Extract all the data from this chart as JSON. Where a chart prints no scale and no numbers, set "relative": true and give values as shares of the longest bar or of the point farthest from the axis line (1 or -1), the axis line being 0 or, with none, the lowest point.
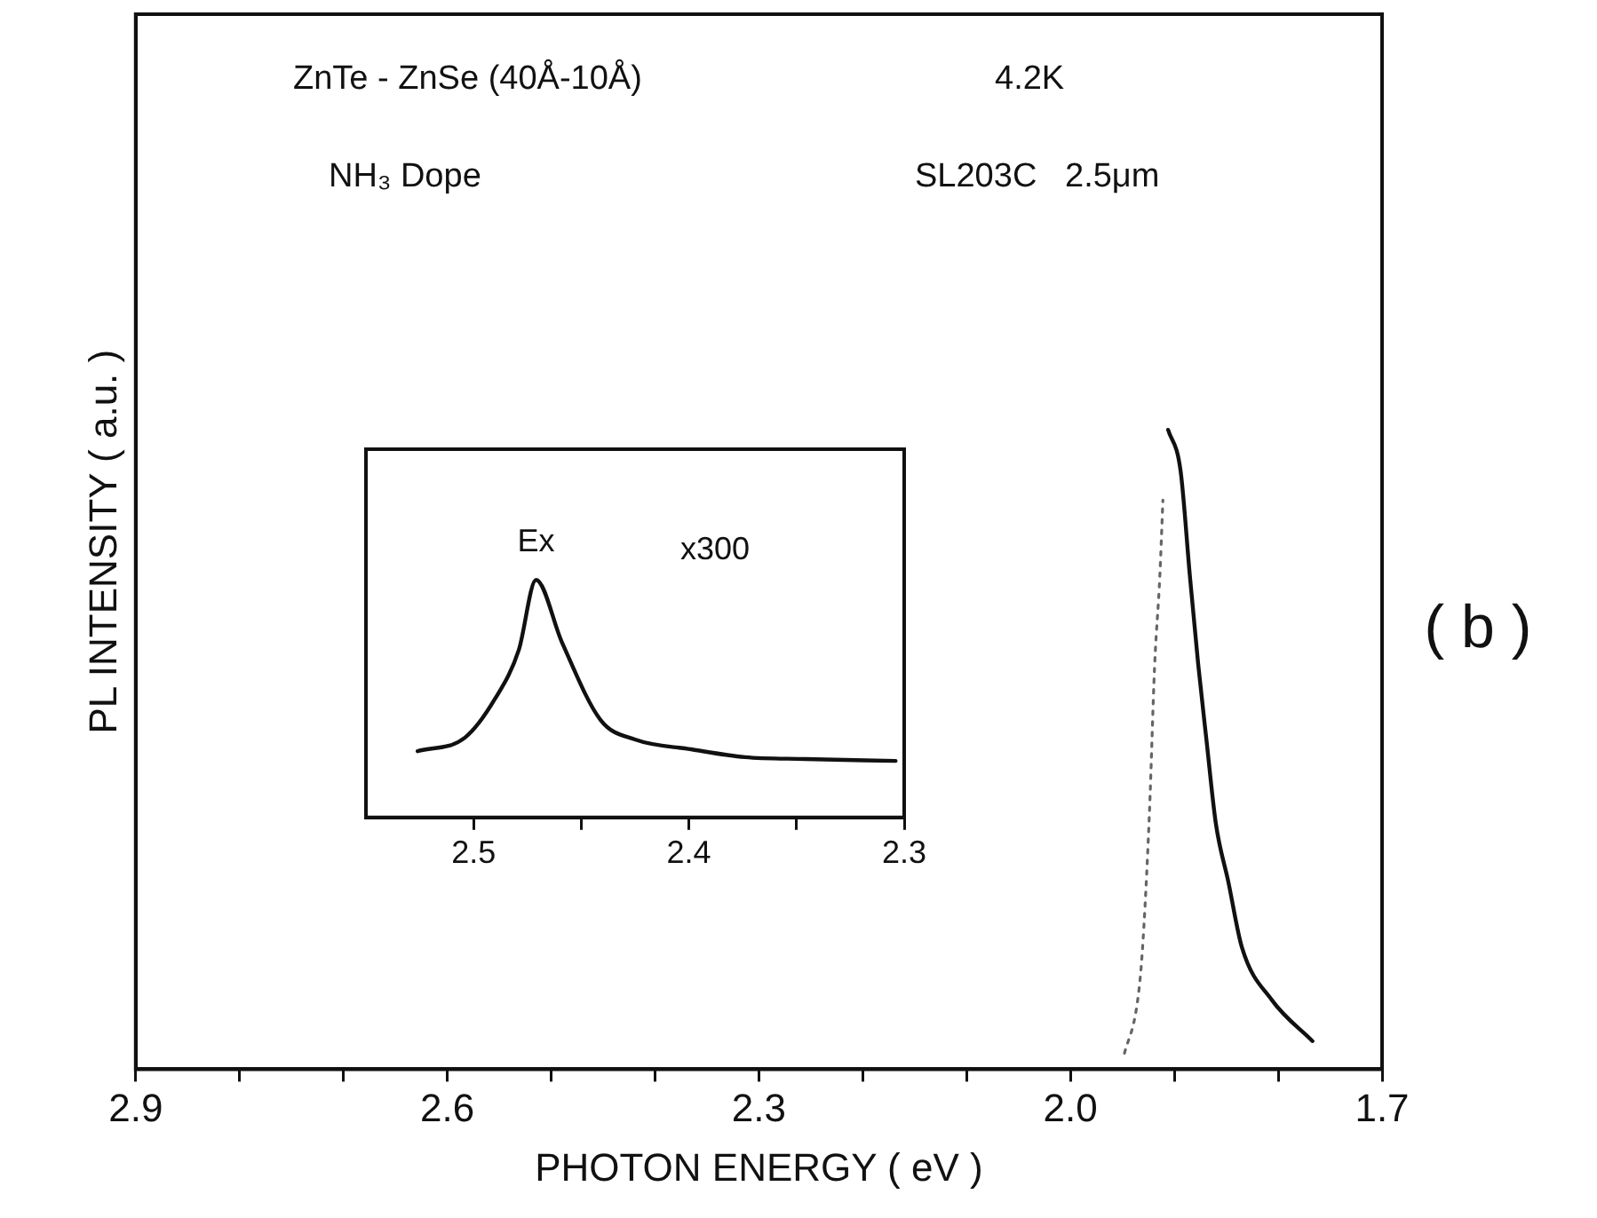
{
  "chart_data": [
    {
      "type": "line",
      "xlabel": "PHOTON ENERGY ( eV )",
      "ylabel": "PL INTENSITY ( a.u. )",
      "relative": true,
      "annotations": [
        "ZnTe - ZnSe (40Å-10Å)",
        "4.2K",
        "NH₃ Dope",
        "SL203C   2.5μm",
        "( b )"
      ],
      "xlim": [
        2.9,
        1.7
      ],
      "xticks": [
        2.9,
        {
          "value": 2.8,
          "label": null
        },
        {
          "value": 2.7,
          "label": null
        },
        2.6,
        {
          "value": 2.5,
          "label": null
        },
        {
          "value": 2.4,
          "label": null
        },
        2.3,
        {
          "value": 2.2,
          "label": null
        },
        {
          "value": 2.1,
          "label": null
        },
        {
          "value": 2.0,
          "label": "2.0"
        },
        {
          "value": 1.9,
          "label": null
        },
        {
          "value": 1.8,
          "label": null
        },
        1.7
      ],
      "grid": false,
      "legend": false,
      "marker": "none",
      "tick_labels": "x",
      "series": [
        {
          "color": "#111111",
          "line_style": "solid",
          "x": [
            1.906,
            1.894,
            1.885,
            1.877,
            1.869,
            1.86,
            1.848,
            1.835,
            1.806,
            1.767
          ],
          "values": [
            1.0,
            0.936,
            0.771,
            0.633,
            0.514,
            0.384,
            0.293,
            0.191,
            0.108,
            0.044
          ]
        },
        {
          "color": "#666666",
          "line_style": "dotted",
          "x": [
            1.948,
            1.936,
            1.931,
            1.924,
            1.919,
            1.914,
            1.911
          ],
          "values": [
            0.025,
            0.1,
            0.18,
            0.4,
            0.63,
            0.77,
            0.89
          ]
        }
      ]
    },
    {
      "type": "line",
      "relative": true,
      "annotations": [
        {
          "text": "Ex",
          "x": 2.471,
          "y": 1.0
        },
        "x300"
      ],
      "xlim": [
        2.55,
        2.3
      ],
      "xticks": [
        2.5,
        {
          "value": 2.45,
          "label": null
        },
        2.4,
        {
          "value": 2.35,
          "label": null
        },
        2.3
      ],
      "grid": false,
      "legend": false,
      "marker": "none",
      "tick_labels": "x",
      "series": [
        {
          "color": "#111111",
          "line_style": "solid",
          "x": [
            2.526,
            2.504,
            2.49,
            2.479,
            2.471,
            2.459,
            2.441,
            2.425,
            2.399,
            2.374,
            2.346,
            2.304
          ],
          "values": [
            0.279,
            0.336,
            0.5,
            0.705,
            1.0,
            0.738,
            0.41,
            0.328,
            0.287,
            0.254,
            0.246,
            0.238
          ]
        }
      ]
    }
  ]
}
